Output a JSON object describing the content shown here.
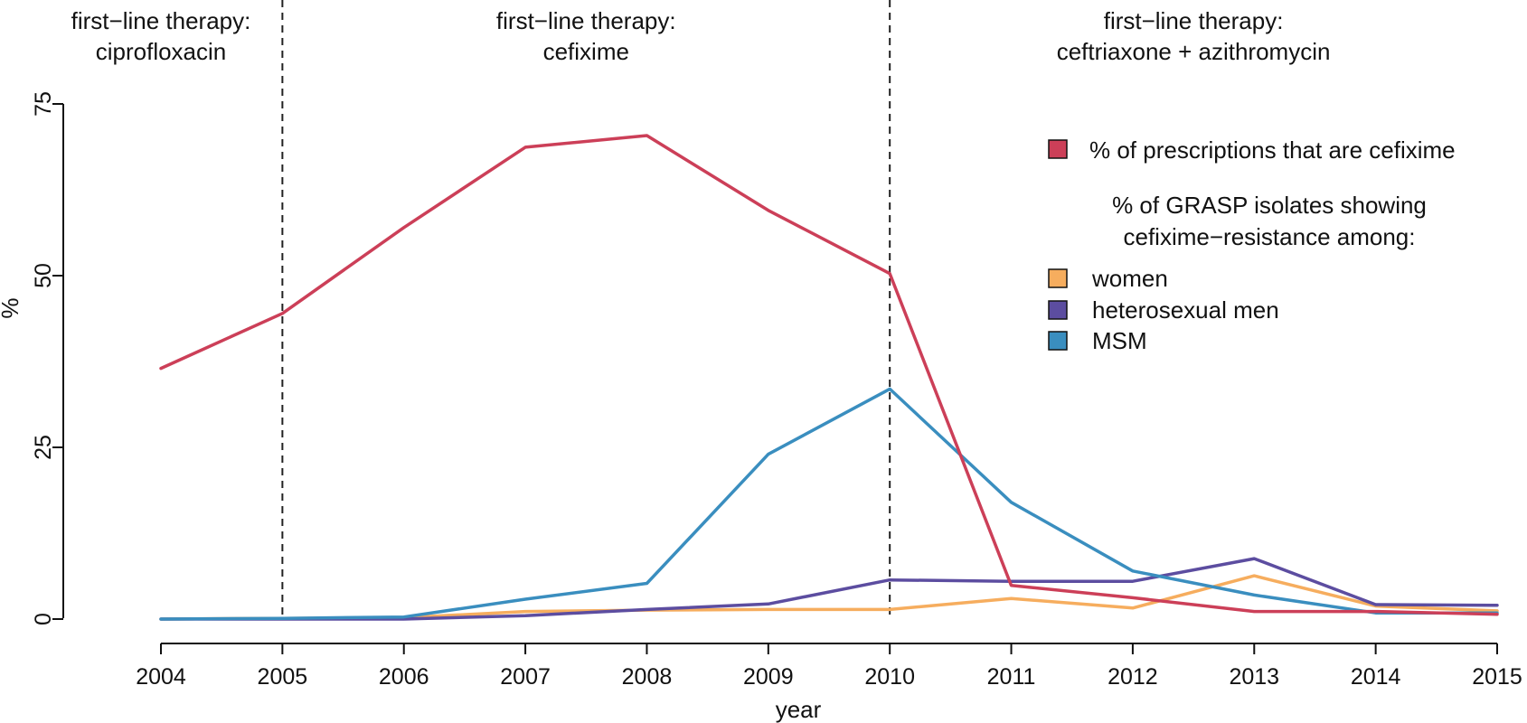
{
  "chart_data": {
    "type": "line",
    "title": "",
    "xlabel": "year",
    "ylabel": "%",
    "xlim": [
      2004,
      2015
    ],
    "ylim": [
      0,
      75
    ],
    "x": [
      2004,
      2005,
      2006,
      2007,
      2008,
      2009,
      2010,
      2011,
      2012,
      2013,
      2014,
      2015
    ],
    "x_ticks": [
      "2004",
      "2005",
      "2006",
      "2007",
      "2008",
      "2009",
      "2010",
      "2011",
      "2012",
      "2013",
      "2014",
      "2015"
    ],
    "y_ticks": [
      "0",
      "25",
      "50",
      "75"
    ],
    "grid": false,
    "legend_position": "top-right",
    "periods": [
      {
        "line1": "first−line therapy:",
        "line2": "ciprofloxacin",
        "x_center": 2004
      },
      {
        "line1": "first−line therapy:",
        "line2": "cefixime",
        "x_center": 2007.5
      },
      {
        "line1": "first−line therapy:",
        "line2": "ceftriaxone + azithromycin",
        "x_center": 2012.5
      }
    ],
    "vertical_lines_x": [
      2005,
      2010
    ],
    "legend_heading_line1": "% of GRASP isolates showing",
    "legend_heading_line2": "cefixime−resistance among:",
    "series": [
      {
        "name": "% of prescriptions that are cefixime",
        "color": "#cc3f58",
        "values": [
          36.5,
          44.5,
          57,
          68.7,
          70.4,
          59.5,
          50.3,
          4.9,
          3.1,
          1.1,
          1.1,
          0.7
        ]
      },
      {
        "name": "women",
        "color": "#f6ad5e",
        "values": [
          0,
          0.1,
          0.2,
          1.1,
          1.3,
          1.4,
          1.4,
          3,
          1.6,
          6.3,
          1.9,
          1.2
        ]
      },
      {
        "name": "heterosexual men",
        "color": "#5c4da0",
        "values": [
          0,
          0,
          0,
          0.5,
          1.4,
          2.2,
          5.7,
          5.5,
          5.5,
          8.8,
          2.1,
          2
        ]
      },
      {
        "name": "MSM",
        "color": "#3a8ebf",
        "values": [
          0,
          0.1,
          0.3,
          2.9,
          5.2,
          24,
          33.5,
          17,
          7,
          3.5,
          0.9,
          0.9
        ]
      }
    ]
  }
}
